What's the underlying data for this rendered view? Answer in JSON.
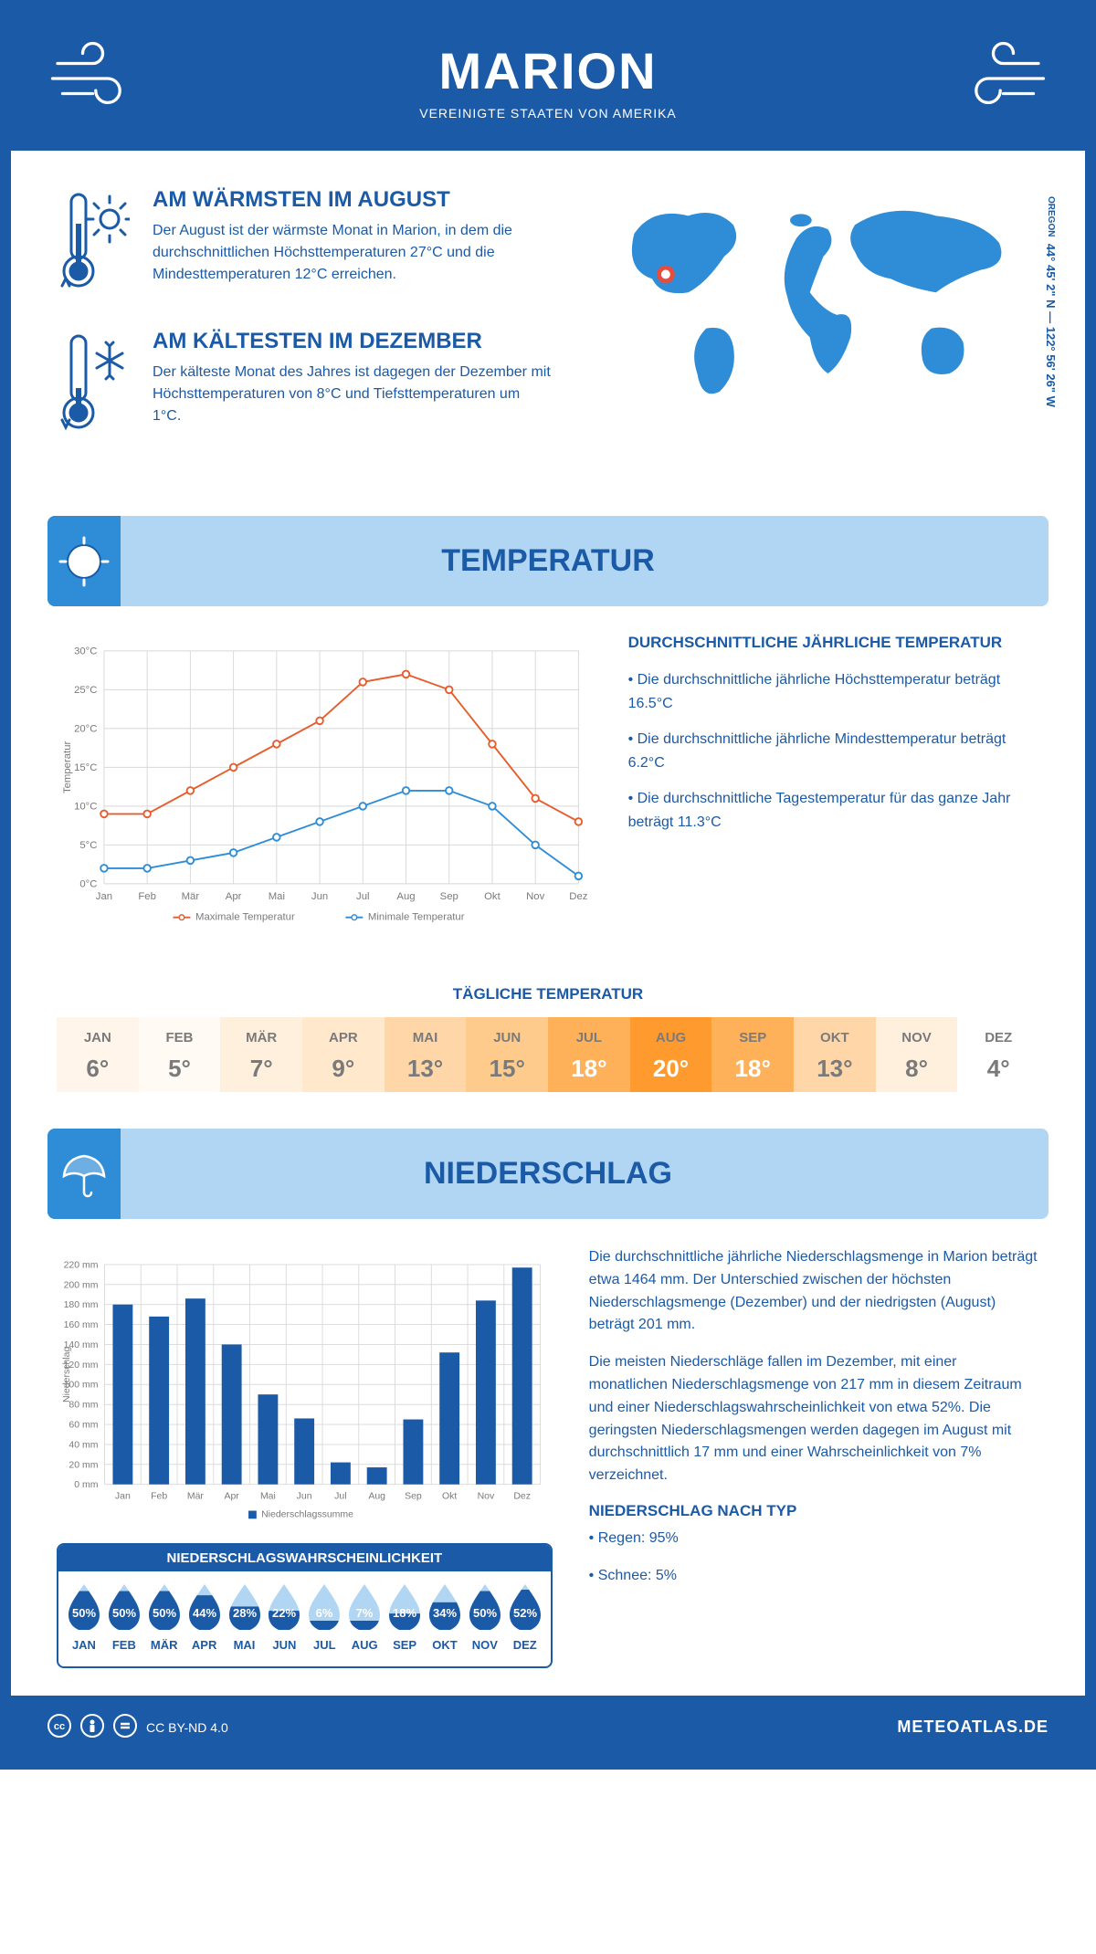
{
  "header": {
    "title": "MARION",
    "subtitle": "VEREINIGTE STAATEN VON AMERIKA"
  },
  "intro": {
    "warm": {
      "title": "AM WÄRMSTEN IM AUGUST",
      "text": "Der August ist der wärmste Monat in Marion, in dem die durchschnittlichen Höchsttemperaturen 27°C und die Mindesttemperaturen 12°C erreichen."
    },
    "cold": {
      "title": "AM KÄLTESTEN IM DEZEMBER",
      "text": "Der kälteste Monat des Jahres ist dagegen der Dezember mit Höchsttemperaturen von 8°C und Tiefsttemperaturen um 1°C."
    },
    "coords": "44° 45' 2\" N — 122° 56' 26\" W",
    "region": "OREGON",
    "marker_color": "#e74c3c",
    "world_color": "#2e8dd6"
  },
  "temperature": {
    "section_title": "TEMPERATUR",
    "chart": {
      "type": "line",
      "months": [
        "Jan",
        "Feb",
        "Mär",
        "Apr",
        "Mai",
        "Jun",
        "Jul",
        "Aug",
        "Sep",
        "Okt",
        "Nov",
        "Dez"
      ],
      "max_values": [
        9,
        9,
        12,
        15,
        18,
        21,
        26,
        27,
        25,
        18,
        11,
        8
      ],
      "min_values": [
        2,
        2,
        3,
        4,
        6,
        8,
        10,
        12,
        12,
        10,
        5,
        1
      ],
      "ylim": [
        0,
        30
      ],
      "ytick_step": 5,
      "max_color": "#e65d2e",
      "min_color": "#2e8dd6",
      "grid_color": "#d8d8d8",
      "axis_color": "#7a7a7a",
      "ylabel": "Temperatur",
      "y_tick_labels": [
        "0°C",
        "5°C",
        "10°C",
        "15°C",
        "20°C",
        "25°C",
        "30°C"
      ],
      "legend_max": "Maximale Temperatur",
      "legend_min": "Minimale Temperatur",
      "line_width": 2,
      "marker_size": 4
    },
    "text": {
      "title": "DURCHSCHNITTLICHE JÄHRLICHE TEMPERATUR",
      "p1": "• Die durchschnittliche jährliche Höchsttemperatur beträgt 16.5°C",
      "p2": "• Die durchschnittliche jährliche Mindesttemperatur beträgt 6.2°C",
      "p3": "• Die durchschnittliche Tagestemperatur für das ganze Jahr beträgt 11.3°C"
    },
    "daily": {
      "title": "TÄGLICHE TEMPERATUR",
      "months": [
        "JAN",
        "FEB",
        "MÄR",
        "APR",
        "MAI",
        "JUN",
        "JUL",
        "AUG",
        "SEP",
        "OKT",
        "NOV",
        "DEZ"
      ],
      "values": [
        "6°",
        "5°",
        "7°",
        "9°",
        "13°",
        "15°",
        "18°",
        "20°",
        "18°",
        "13°",
        "8°",
        "4°"
      ],
      "bg_colors": [
        "#fff5ea",
        "#fffaf3",
        "#fff0dd",
        "#ffe8cc",
        "#ffd6a8",
        "#ffcb8d",
        "#ffb15a",
        "#ff9a2e",
        "#ffb15a",
        "#ffd6a8",
        "#fff0dd",
        "#ffffff"
      ],
      "text_colors": [
        "#7a7a7a",
        "#7a7a7a",
        "#7a7a7a",
        "#7a7a7a",
        "#7a7a7a",
        "#7a7a7a",
        "#ffffff",
        "#ffffff",
        "#ffffff",
        "#7a7a7a",
        "#7a7a7a",
        "#7a7a7a"
      ]
    }
  },
  "precipitation": {
    "section_title": "NIEDERSCHLAG",
    "chart": {
      "type": "bar",
      "months": [
        "Jan",
        "Feb",
        "Mär",
        "Apr",
        "Mai",
        "Jun",
        "Jul",
        "Aug",
        "Sep",
        "Okt",
        "Nov",
        "Dez"
      ],
      "values": [
        180,
        168,
        186,
        140,
        90,
        66,
        22,
        17,
        65,
        132,
        184,
        217
      ],
      "ylim": [
        0,
        220
      ],
      "ytick_step": 20,
      "bar_color": "#1b5aa6",
      "grid_color": "#d8d8d8",
      "ylabel": "Niederschlag",
      "legend": "Niederschlagssumme",
      "y_tick_labels": [
        "0 mm",
        "20 mm",
        "40 mm",
        "60 mm",
        "80 mm",
        "100 mm",
        "120 mm",
        "140 mm",
        "160 mm",
        "180 mm",
        "200 mm",
        "220 mm"
      ],
      "bar_width": 0.55
    },
    "text": {
      "p1": "Die durchschnittliche jährliche Niederschlagsmenge in Marion beträgt etwa 1464 mm. Der Unterschied zwischen der höchsten Niederschlagsmenge (Dezember) und der niedrigsten (August) beträgt 201 mm.",
      "p2": "Die meisten Niederschläge fallen im Dezember, mit einer monatlichen Niederschlagsmenge von 217 mm in diesem Zeitraum und einer Niederschlagswahrscheinlichkeit von etwa 52%. Die geringsten Niederschlagsmengen werden dagegen im August mit durchschnittlich 17 mm und einer Wahrscheinlichkeit von 7% verzeichnet.",
      "type_title": "NIEDERSCHLAG NACH TYP",
      "type_p1": "• Regen: 95%",
      "type_p2": "• Schnee: 5%"
    },
    "probability": {
      "title": "NIEDERSCHLAGSWAHRSCHEINLICHKEIT",
      "months": [
        "JAN",
        "FEB",
        "MÄR",
        "APR",
        "MAI",
        "JUN",
        "JUL",
        "AUG",
        "SEP",
        "OKT",
        "NOV",
        "DEZ"
      ],
      "pct": [
        "50%",
        "50%",
        "50%",
        "44%",
        "28%",
        "22%",
        "6%",
        "7%",
        "18%",
        "34%",
        "50%",
        "52%"
      ],
      "fill_dark": "#1b5aa6",
      "fill_light": "#b0d6f4"
    }
  },
  "footer": {
    "license": "CC BY-ND 4.0",
    "brand": "METEOATLAS.DE"
  },
  "colors": {
    "primary": "#1b5aa6",
    "secondary": "#2e8dd6",
    "light": "#b0d6f4"
  }
}
